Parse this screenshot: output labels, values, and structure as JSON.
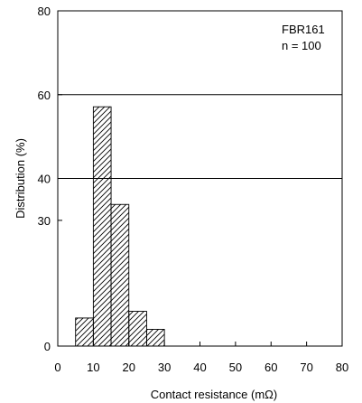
{
  "chart_data": {
    "type": "bar",
    "bin_edges": [
      5,
      10,
      15,
      20,
      25,
      30
    ],
    "values": [
      6.7,
      57.1,
      33.8,
      8.3,
      4.0
    ],
    "xlabel": "Contact resistance (mΩ)",
    "ylabel": "Distribution (%)",
    "xlim": [
      0,
      80
    ],
    "x_ticks": [
      "0",
      "10",
      "20",
      "30",
      "40",
      "50",
      "60",
      "70",
      "80"
    ],
    "y_ticks": [
      "0",
      "30",
      "40",
      "60",
      "80"
    ],
    "y_tick_values": [
      0,
      30,
      40,
      60,
      80
    ],
    "gridlines_at": [
      40,
      60,
      80
    ],
    "y_display_breaks": [
      0,
      20,
      40,
      60,
      80
    ],
    "annotation": [
      "FBR161",
      "n = 100"
    ],
    "bar_fill": "hatched",
    "colors": {
      "line": "#000000",
      "background": "#ffffff"
    }
  }
}
